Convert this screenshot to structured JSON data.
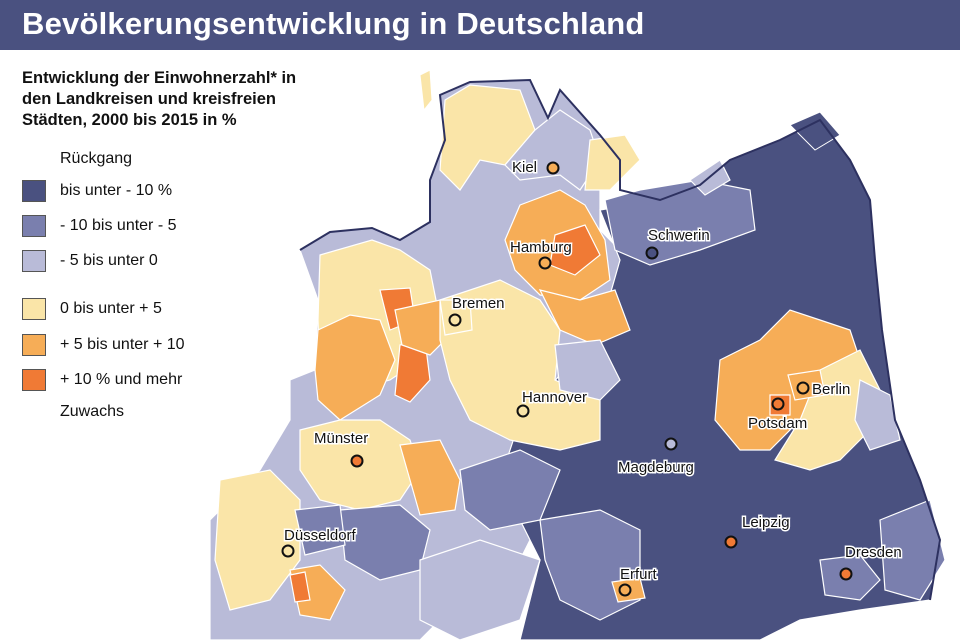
{
  "title": "Bevölkerungsentwicklung in Deutschland",
  "subtitle_lines": [
    "Entwicklung der Einwohnerzahl* in",
    "den Landkreisen und kreisfreien",
    "Städten, 2000 bis 2015 in %"
  ],
  "legend": {
    "decline_label": "Rückgang",
    "growth_label": "Zuwachs",
    "items": [
      {
        "label": "bis unter  - 10 %",
        "color": "#4a5180"
      },
      {
        "label": "- 10 bis unter  - 5",
        "color": "#7a7fae"
      },
      {
        "label": "- 5 bis unter 0",
        "color": "#b9bbd8"
      },
      {
        "label": "0 bis unter + 5",
        "color": "#fae5a8"
      },
      {
        "label": "+ 5 bis unter + 10",
        "color": "#f6ad57"
      },
      {
        "label": "+ 10 % und mehr",
        "color": "#f07a35"
      }
    ]
  },
  "cities": [
    {
      "name": "Kiel",
      "category": "+ 5 bis unter + 10"
    },
    {
      "name": "Hamburg",
      "category": "+ 5 bis unter + 10"
    },
    {
      "name": "Schwerin",
      "category": "bis unter  - 10 %"
    },
    {
      "name": "Bremen",
      "category": "0 bis unter + 5"
    },
    {
      "name": "Hannover",
      "category": "0 bis unter + 5"
    },
    {
      "name": "Berlin",
      "category": "+ 5 bis unter + 10"
    },
    {
      "name": "Potsdam",
      "category": "+ 10 % und mehr"
    },
    {
      "name": "Magdeburg",
      "category": "- 5 bis unter 0"
    },
    {
      "name": "Münster",
      "category": "+ 10 % und mehr"
    },
    {
      "name": "Leipzig",
      "category": "+ 10 % und mehr"
    },
    {
      "name": "Dresden",
      "category": "+ 10 % und mehr"
    },
    {
      "name": "Düsseldorf",
      "category": "0 bis unter + 5"
    },
    {
      "name": "Erfurt",
      "category": "+ 5 bis unter + 10"
    }
  ]
}
